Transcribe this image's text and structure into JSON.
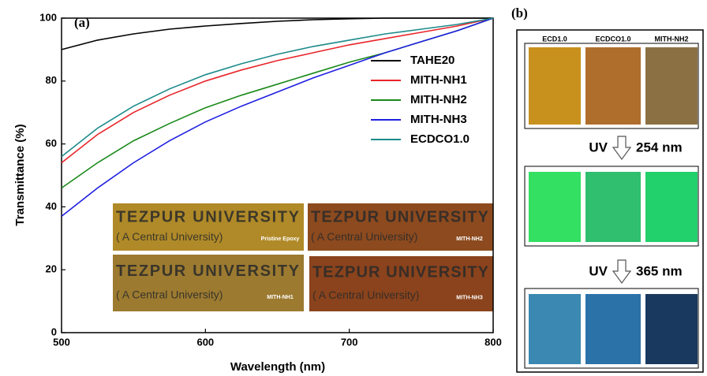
{
  "chart_data": {
    "type": "line",
    "panel_label": "(a)",
    "x_label": "Wavelength (nm)",
    "y_label": "Transmittance (%)",
    "x": [
      500,
      525,
      550,
      575,
      600,
      625,
      650,
      675,
      700,
      725,
      750,
      775,
      800
    ],
    "series": [
      {
        "name": "TAHE20",
        "color": "#000000",
        "values": [
          90,
          93,
          95,
          96.5,
          97.5,
          98.3,
          99,
          99.5,
          99.8,
          100,
          100,
          100,
          100
        ]
      },
      {
        "name": "MITH-NH1",
        "color": "#e8252a",
        "values": [
          54,
          63,
          70,
          75.5,
          80,
          83.5,
          86.5,
          89,
          91.5,
          93.5,
          95.5,
          97.5,
          100
        ]
      },
      {
        "name": "MITH-NH2",
        "color": "#1a8a1a",
        "values": [
          46,
          54,
          61,
          66.5,
          71.5,
          75.5,
          79,
          82.5,
          86,
          89,
          92.5,
          96,
          100
        ]
      },
      {
        "name": "MITH-NH3",
        "color": "#1f1fe0",
        "values": [
          37,
          46,
          54,
          61,
          67,
          72,
          76.5,
          81,
          85,
          89,
          92.5,
          96,
          100
        ]
      },
      {
        "name": "ECDCO1.0",
        "color": "#1d8a8a",
        "values": [
          56,
          65,
          72,
          77.5,
          82,
          85.5,
          88.5,
          91,
          93,
          95,
          96.5,
          98,
          100
        ]
      }
    ],
    "xlim": [
      500,
      800
    ],
    "xticks": [
      500,
      600,
      700,
      800
    ],
    "ylim": [
      0,
      100
    ],
    "yticks": [
      0,
      20,
      40,
      60,
      80,
      100
    ],
    "grid": false,
    "legend": "upper right",
    "inset_photos": [
      {
        "line1": "TEZPUR UNIVERSITY",
        "line2": "( A Central University)",
        "tag": "Pristine Epoxy"
      },
      {
        "line1": "TEZPUR UNIVERSITY",
        "line2": "( A Central University)",
        "tag": "MITH-NH2"
      },
      {
        "line1": "TEZPUR UNIVERSITY",
        "line2": "( A Central University)",
        "tag": "MITH-NH1"
      },
      {
        "line1": "TEZPUR UNIVERSITY",
        "line2": "( A Central University)",
        "tag": "MITH-NH3"
      }
    ]
  },
  "photo_panel": {
    "label": "(b)",
    "columns": [
      "ECD1.0",
      "ECDCO1.0",
      "MITH-NH2"
    ],
    "steps": [
      {
        "lamp": "UV",
        "wavelength": "254 nm"
      },
      {
        "lamp": "UV",
        "wavelength": "365 nm"
      }
    ]
  }
}
